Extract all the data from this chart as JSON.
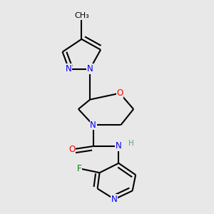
{
  "bg_color": "#e8e8e8",
  "bond_color": "#000000",
  "bond_width": 1.5,
  "atom_colors": {
    "N": "#0000ff",
    "O": "#ff0000",
    "F": "#008000",
    "C": "#000000",
    "H": "#5f9f7f"
  },
  "font_size": 8.5,
  "figsize": [
    3.0,
    3.0
  ],
  "dpi": 100
}
